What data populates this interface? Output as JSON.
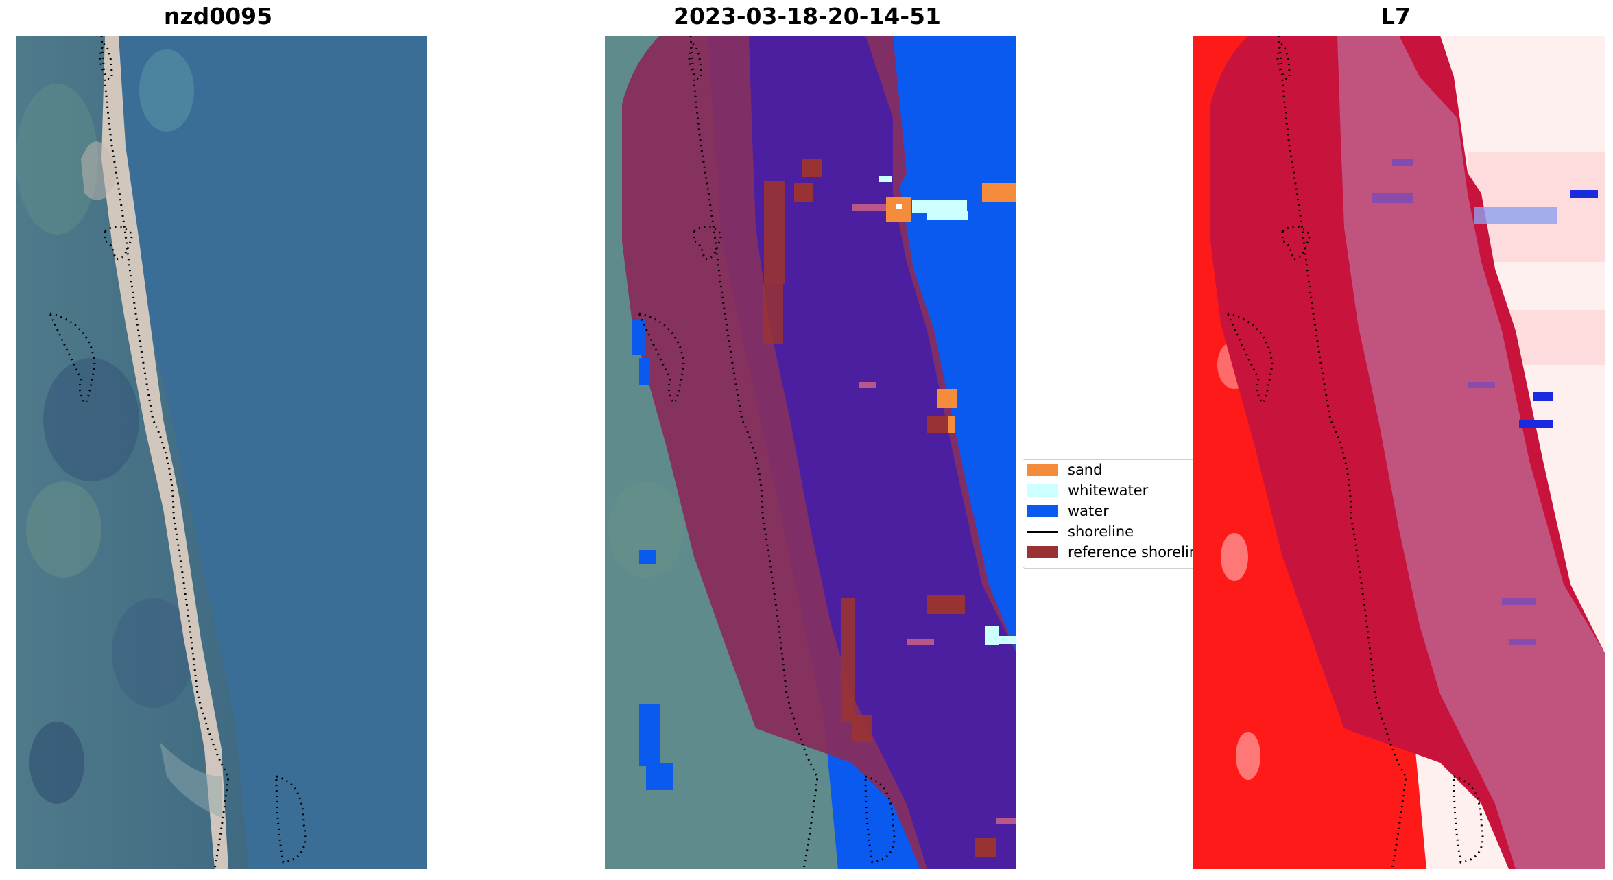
{
  "panels": [
    {
      "title": "nzd0095"
    },
    {
      "title": "2023-03-18-20-14-51"
    },
    {
      "title": "L7"
    }
  ],
  "legend": {
    "items": [
      {
        "label": "sand",
        "color": "#f58c3c",
        "kind": "patch"
      },
      {
        "label": "whitewater",
        "color": "#ccffff",
        "kind": "patch"
      },
      {
        "label": "water",
        "color": "#0a5af0",
        "kind": "patch"
      },
      {
        "label": "shoreline",
        "color": "#000000",
        "kind": "line"
      },
      {
        "label": "reference shoreline",
        "color": "#993333",
        "kind": "patch"
      }
    ]
  },
  "colors": {
    "water": "#0a5af0",
    "sea_class_overlay": "#4b1fa0",
    "land_overlay": "#8a2a5a",
    "index_land_red": "#ff1a1a",
    "index_buffer_crimson": "#c8143c"
  }
}
